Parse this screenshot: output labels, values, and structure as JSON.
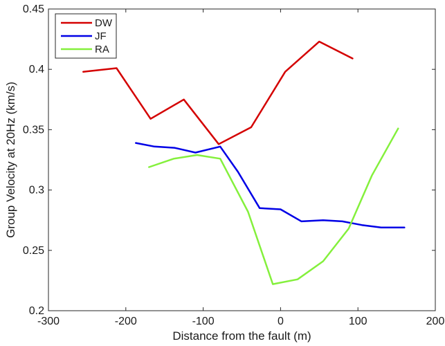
{
  "chart_data": {
    "type": "line",
    "title": "",
    "xlabel": "Distance from the fault (m)",
    "ylabel": "Group Velocity at 20Hz (km/s)",
    "xlim": [
      -300,
      200
    ],
    "ylim": [
      0.2,
      0.45
    ],
    "xticks": [
      -300,
      -200,
      -100,
      0,
      100,
      200
    ],
    "yticks": [
      0.2,
      0.25,
      0.3,
      0.35,
      0.4,
      0.45
    ],
    "xtick_labels": [
      "-300",
      "-200",
      "-100",
      "0",
      "100",
      "200"
    ],
    "ytick_labels": [
      "0.2",
      "0.25",
      "0.3",
      "0.35",
      "0.4",
      "0.45"
    ],
    "grid": false,
    "legend_position": "top-left",
    "series": [
      {
        "name": "DW",
        "color": "#d40000",
        "x": [
          -255,
          -212,
          -168,
          -125,
          -80,
          -38,
          6,
          50,
          93
        ],
        "y": [
          0.398,
          0.401,
          0.359,
          0.375,
          0.338,
          0.352,
          0.398,
          0.423,
          0.409
        ]
      },
      {
        "name": "JF",
        "color": "#0000e6",
        "x": [
          -187,
          -163,
          -137,
          -110,
          -78,
          -55,
          -27,
          0,
          27,
          55,
          80,
          105,
          130,
          160
        ],
        "y": [
          0.339,
          0.336,
          0.335,
          0.331,
          0.336,
          0.315,
          0.285,
          0.284,
          0.274,
          0.275,
          0.274,
          0.271,
          0.269,
          0.269
        ]
      },
      {
        "name": "RA",
        "color": "#84f03c",
        "x": [
          -170,
          -138,
          -108,
          -78,
          -42,
          -10,
          22,
          55,
          88,
          118,
          152
        ],
        "y": [
          0.319,
          0.326,
          0.329,
          0.326,
          0.282,
          0.222,
          0.226,
          0.241,
          0.268,
          0.312,
          0.351
        ]
      }
    ]
  }
}
